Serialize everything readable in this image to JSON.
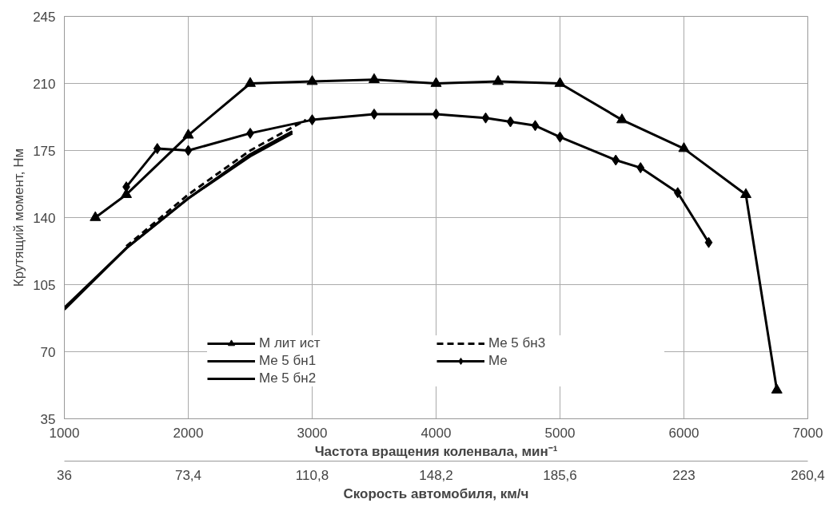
{
  "chart_data": {
    "type": "line",
    "xlabel": "Частота вращения коленвала, мин⁻¹",
    "ylabel": "Крутящий момент, Нм",
    "x2label": "Скорость автомобиля, км/ч",
    "xlim": [
      1000,
      7000
    ],
    "xticks": [
      1000,
      2000,
      3000,
      4000,
      5000,
      6000,
      7000
    ],
    "ylim": [
      35,
      245
    ],
    "yticks": [
      35,
      70,
      105,
      140,
      175,
      210,
      245
    ],
    "x2lim": [
      36,
      260.4
    ],
    "x2ticks": [
      36,
      {
        "value": 73.4,
        "label": "73,4"
      },
      {
        "value": 110.8,
        "label": "110,8"
      },
      {
        "value": 148.2,
        "label": "148,2"
      },
      {
        "value": 185.6,
        "label": "185,6"
      },
      223,
      {
        "value": 260.4,
        "label": "260,4"
      }
    ],
    "grid": true,
    "legend": "bottom",
    "series": [
      {
        "name": "M лит ист",
        "color": "#000000",
        "marker": "triangle",
        "line_style": "solid",
        "x": [
          1250,
          1500,
          2000,
          2500,
          3000,
          3500,
          4000,
          4500,
          5000,
          5500,
          6000,
          6500,
          6750
        ],
        "values": [
          140,
          152,
          183,
          210,
          211,
          212,
          210,
          211,
          210,
          191,
          176,
          152,
          50
        ]
      },
      {
        "name": "Me 5 бн1",
        "color": "#000000",
        "marker": "none",
        "line_style": "solid",
        "x": [
          1000,
          1500,
          2000,
          2500,
          2840
        ],
        "values": [
          93,
          124,
          150,
          172,
          184
        ]
      },
      {
        "name": "Me 5 бн2",
        "color": "#000000",
        "marker": "none",
        "line_style": "solid",
        "x": [
          1000,
          1500,
          2000,
          2500,
          2840
        ],
        "values": [
          92,
          124,
          150,
          173,
          185
        ]
      },
      {
        "name": "Me 5 бн3",
        "color": "#000000",
        "marker": "none",
        "line_style": "dashed",
        "x": [
          1500,
          2000,
          2500,
          2950
        ],
        "values": [
          125,
          152,
          175,
          191
        ]
      },
      {
        "name": "Me",
        "color": "#000000",
        "marker": "diamond",
        "line_style": "solid",
        "x": [
          1500,
          1750,
          2000,
          2500,
          3000,
          3500,
          4000,
          4400,
          4600,
          4800,
          5000,
          5450,
          5650,
          5950,
          6200
        ],
        "values": [
          156,
          176,
          175,
          184,
          191,
          194,
          194,
          192,
          190,
          188,
          182,
          170,
          166,
          153,
          127
        ]
      }
    ]
  }
}
